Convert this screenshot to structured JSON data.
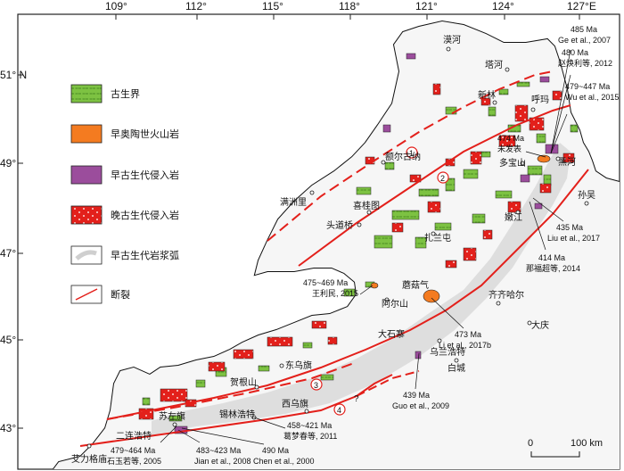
{
  "axes": {
    "top_longitudes": [
      "109°",
      "112°",
      "115°",
      "118°",
      "121°",
      "124°",
      "127°E"
    ],
    "left_latitudes": [
      "51° N",
      "49°",
      "47°",
      "45°",
      "43°"
    ]
  },
  "legend": [
    {
      "label": "古生界",
      "color": "#7dc242"
    },
    {
      "label": "早奥陶世火山岩",
      "color": "#f47b20"
    },
    {
      "label": "早古生代侵入岩",
      "color": "#9b4d9c"
    },
    {
      "label": "晚古生代侵入岩",
      "color": "#e3201b"
    },
    {
      "label": "早古生代岩浆弧",
      "color": "#e6e6e6"
    },
    {
      "label": "断裂",
      "color": "#e3201b"
    }
  ],
  "faults": [
    "1",
    "2",
    "3",
    "4"
  ],
  "fault_question": "?",
  "cities": {
    "mohe": "漠河",
    "tahe": "塔河",
    "xinlin": "新林",
    "huma": "呼玛",
    "duobaoshan": "多宝山",
    "heihe": "黑河",
    "sunwu": "孙吴",
    "nenjiang": "嫩江",
    "manzhouli": "满洲里",
    "eerguna": "额尔古纳",
    "xiguitu": "喜桂图",
    "toudaoqiao": "头道桥",
    "zhalantun": "扎兰屯",
    "mogu": "蘑菇气",
    "qiqihaer": "齐齐哈尔",
    "aershan": "阿尔山",
    "daqing": "大庆",
    "dashizhai": "大石寨",
    "wulanhaote": "乌兰浩特",
    "baicheng": "白城",
    "dongwuqi": "东乌旗",
    "xiwuqi": "西乌旗",
    "hegenshan": "贺根山",
    "xilinhaote": "锡林浩特",
    "suzuoqi": "苏左旗",
    "erlianhaote": "二连浩特",
    "ailige": "艾力格庙"
  },
  "ages": {
    "ge": {
      "age": "485 Ma",
      "ref": "Ge et al., 2007"
    },
    "zhao": {
      "age": "480 Ma",
      "ref": "赵焕利等, 2012"
    },
    "wu": {
      "age": "479~447 Ma",
      "ref": "Wu et al., 2015"
    },
    "weifa": {
      "age": "474 Ma",
      "ref": "未发表"
    },
    "liu": {
      "age": "435 Ma",
      "ref": "Liu et al., 2017"
    },
    "na": {
      "age": "414 Ma",
      "ref": "那福超等, 2014"
    },
    "wang": {
      "age": "475~469 Ma",
      "ref": "王利民, 2015"
    },
    "li": {
      "age": "473 Ma",
      "ref": "Li et al., 2017b"
    },
    "guo": {
      "age": "439 Ma",
      "ref": "Guo et al., 2009"
    },
    "shi": {
      "age": "479~464 Ma",
      "ref": "石玉若等, 2005"
    },
    "jian": {
      "age": "483~423 Ma",
      "ref": "Jian et al., 2008"
    },
    "chen": {
      "age": "490 Ma",
      "ref": "Chen et al., 2000"
    },
    "ge2": {
      "age": "458~421 Ma",
      "ref": "葛梦春等, 2011"
    }
  },
  "scale": {
    "start": "0",
    "end": "100 km"
  }
}
